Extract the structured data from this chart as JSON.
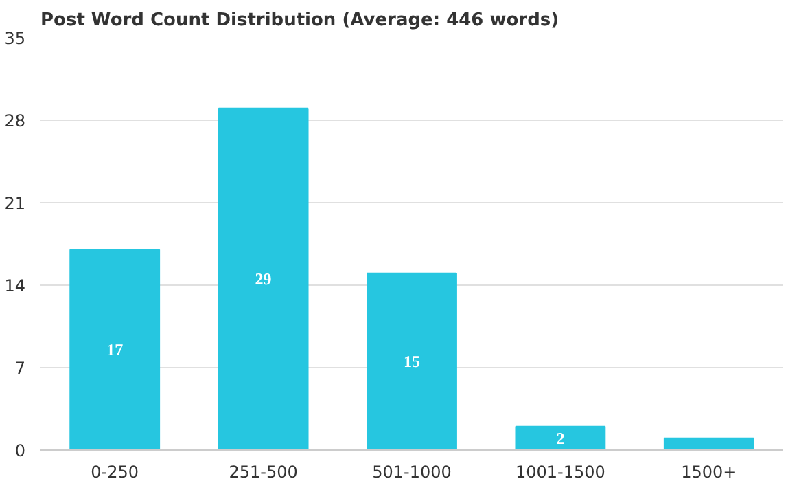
{
  "chart_data": {
    "type": "bar",
    "title": "Post Word Count Distribution (Average: 446 words)",
    "categories": [
      "0-250",
      "251-500",
      "501-1000",
      "1001-1500",
      "1500+"
    ],
    "values": [
      17,
      29,
      15,
      2,
      1
    ],
    "value_labels": [
      "17",
      "29",
      "15",
      "2",
      null
    ],
    "color": "#26c6e0",
    "ylim": [
      0,
      35
    ],
    "yticks": [
      0,
      7,
      14,
      21,
      28,
      35
    ],
    "grid": "y"
  }
}
